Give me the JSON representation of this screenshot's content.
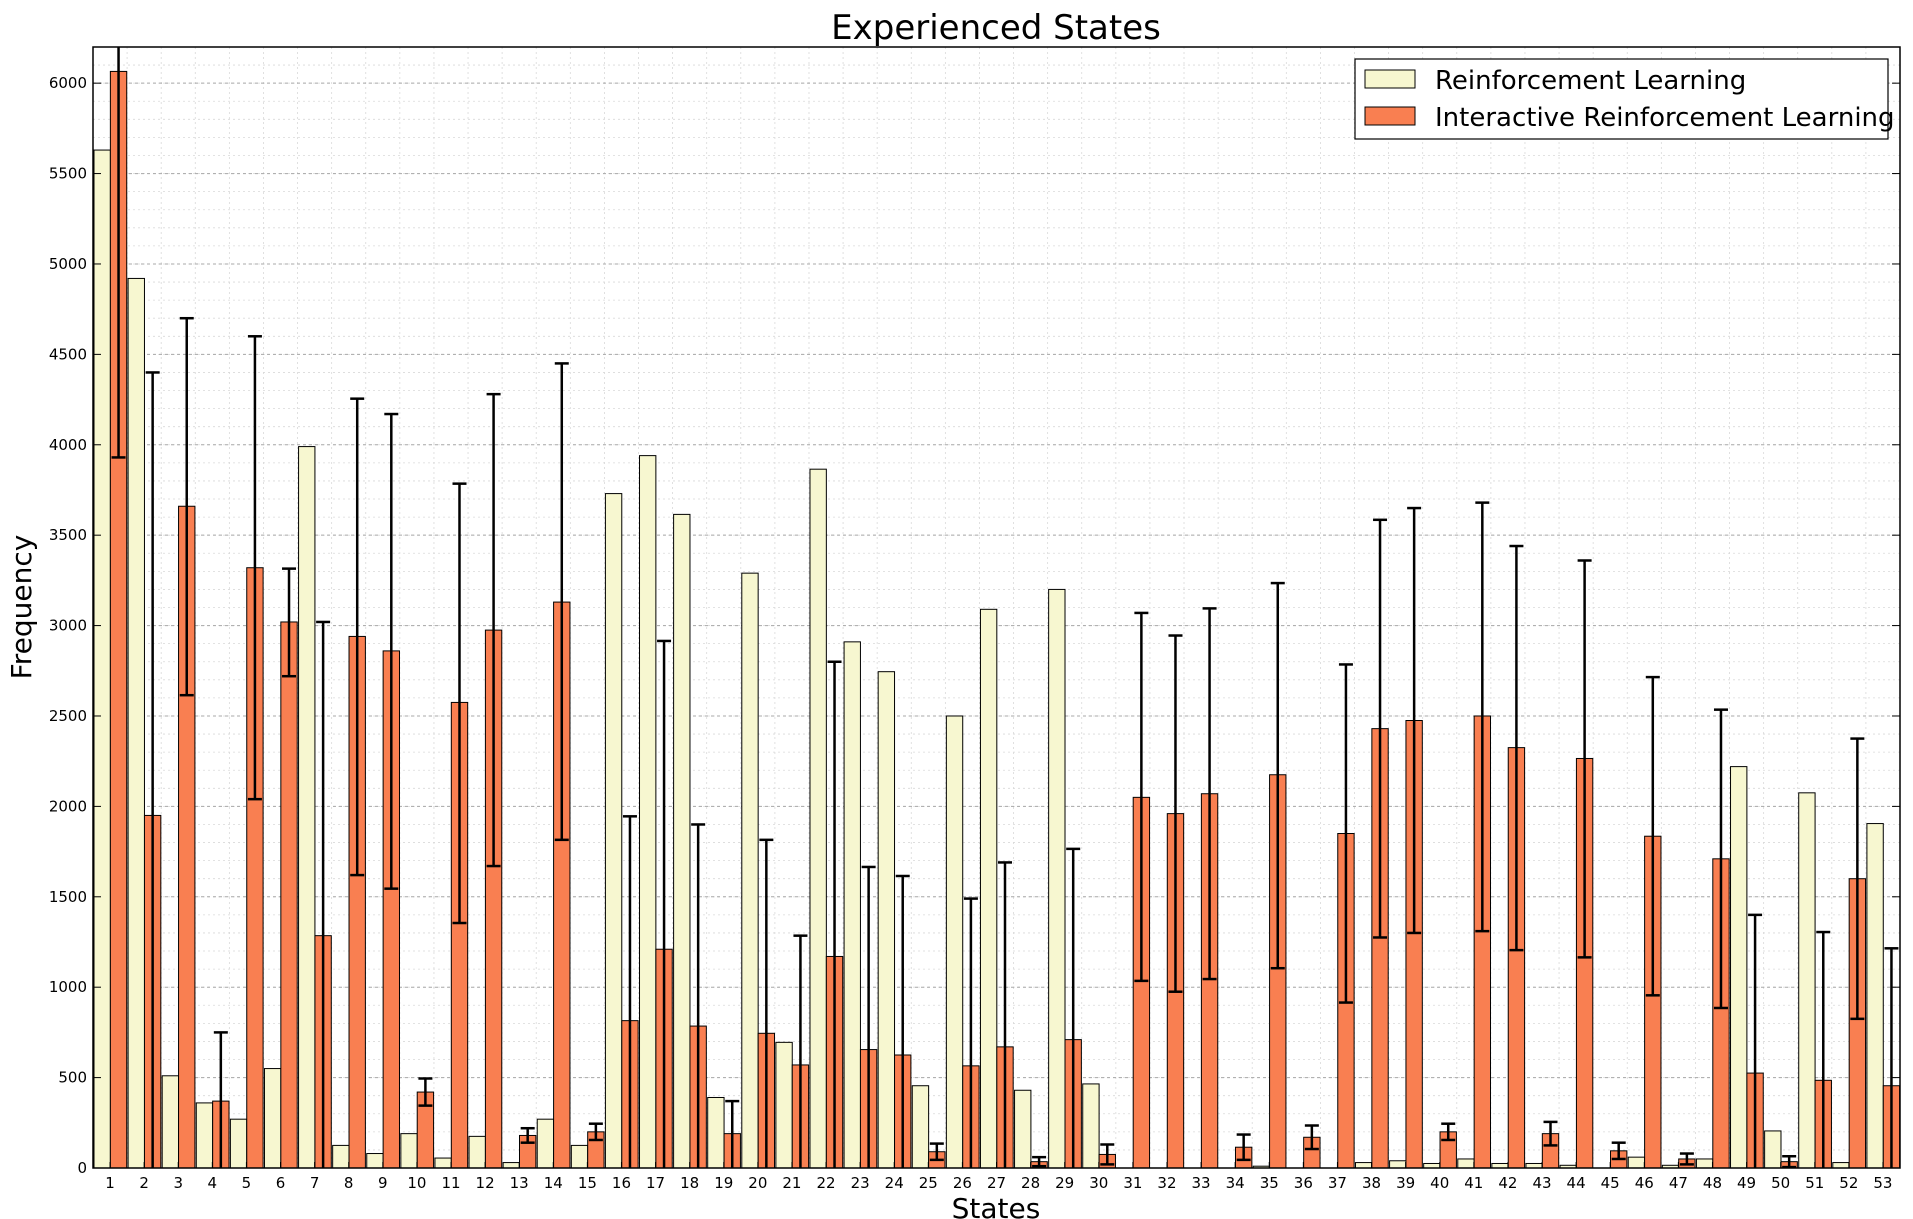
{
  "chart_data": {
    "type": "bar",
    "title": "Experienced States",
    "xlabel": "States",
    "ylabel": "Frequency",
    "ylim": [
      0,
      6200
    ],
    "yticks": [
      0,
      500,
      1000,
      1500,
      2000,
      2500,
      3000,
      3500,
      4000,
      4500,
      5000,
      5500,
      6000
    ],
    "grid": true,
    "legend_position": "top-right",
    "categories": [
      "1",
      "2",
      "3",
      "4",
      "5",
      "6",
      "7",
      "8",
      "9",
      "10",
      "11",
      "12",
      "13",
      "14",
      "15",
      "16",
      "17",
      "18",
      "19",
      "20",
      "21",
      "22",
      "23",
      "24",
      "25",
      "26",
      "27",
      "28",
      "29",
      "30",
      "31",
      "32",
      "33",
      "34",
      "35",
      "36",
      "37",
      "38",
      "39",
      "40",
      "41",
      "42",
      "43",
      "44",
      "45",
      "46",
      "47",
      "48",
      "49",
      "50",
      "51",
      "52",
      "53"
    ],
    "series": [
      {
        "name": "Reinforcement Learning",
        "color": "#f7f7d0",
        "values": [
          5630,
          4920,
          510,
          360,
          270,
          550,
          3990,
          125,
          80,
          190,
          55,
          175,
          30,
          270,
          125,
          3730,
          3940,
          3615,
          390,
          3290,
          695,
          3865,
          2910,
          2745,
          455,
          2500,
          3090,
          430,
          3200,
          465,
          0,
          0,
          0,
          0,
          10,
          0,
          0,
          30,
          40,
          25,
          50,
          25,
          25,
          15,
          0,
          60,
          15,
          50,
          2220,
          205,
          2075,
          30,
          1905
        ]
      },
      {
        "name": "Interactive Reinforcement Learning",
        "color": "#f97f51",
        "values": [
          6065,
          1950,
          3660,
          370,
          3320,
          3020,
          1285,
          2940,
          2860,
          420,
          2575,
          2975,
          180,
          3130,
          200,
          815,
          1210,
          785,
          190,
          745,
          570,
          1170,
          655,
          625,
          90,
          565,
          670,
          35,
          710,
          75,
          2050,
          1960,
          2070,
          115,
          2175,
          170,
          1850,
          2430,
          2475,
          200,
          2500,
          2325,
          190,
          2265,
          95,
          1835,
          50,
          1710,
          525,
          35,
          485,
          1600,
          455
        ]
      }
    ],
    "error_bars": {
      "series": "Interactive Reinforcement Learning",
      "upper": [
        6200,
        4400,
        4700,
        750,
        4600,
        3315,
        3020,
        4255,
        4170,
        495,
        3785,
        4280,
        220,
        4450,
        245,
        1945,
        2915,
        1900,
        370,
        1815,
        1285,
        2800,
        1665,
        1615,
        135,
        1490,
        1690,
        60,
        1765,
        130,
        3070,
        2945,
        3095,
        185,
        3235,
        235,
        2785,
        3585,
        3650,
        245,
        3680,
        3440,
        255,
        3360,
        140,
        2715,
        80,
        2535,
        1400,
        65,
        1305,
        2375,
        1215
      ],
      "lower": [
        3930,
        0,
        2615,
        0,
        2040,
        2720,
        0,
        1620,
        1545,
        345,
        1355,
        1670,
        140,
        1815,
        155,
        0,
        0,
        0,
        0,
        0,
        0,
        0,
        0,
        0,
        45,
        0,
        0,
        10,
        0,
        20,
        1035,
        975,
        1045,
        45,
        1105,
        105,
        915,
        1275,
        1300,
        155,
        1310,
        1205,
        125,
        1165,
        50,
        955,
        20,
        885,
        0,
        5,
        0,
        825,
        0
      ]
    }
  }
}
